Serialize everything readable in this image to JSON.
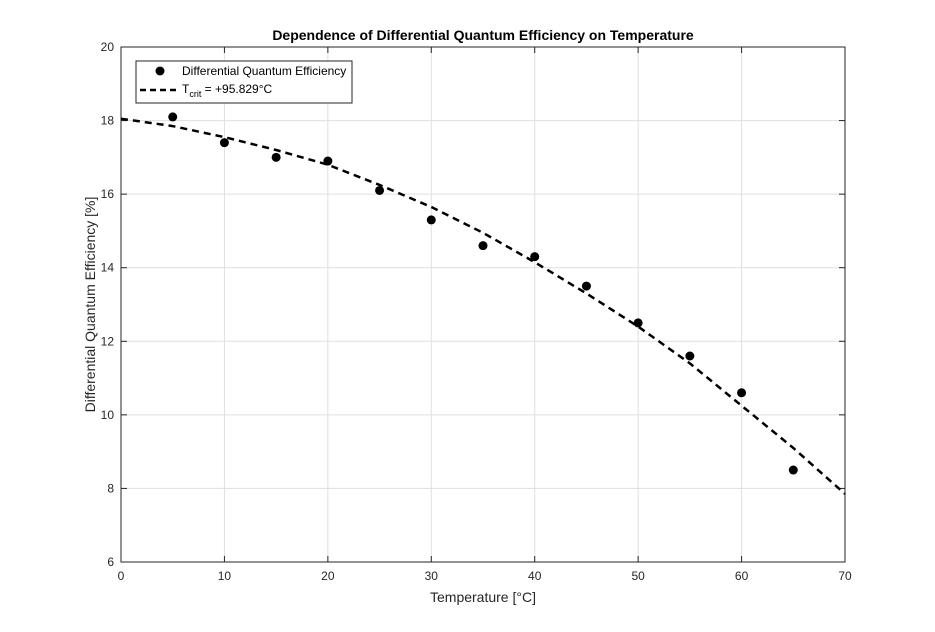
{
  "chart_data": {
    "type": "scatter",
    "title": "Dependence of Differential Quantum Efficiency on Temperature",
    "xlabel": "Temperature [°C]",
    "ylabel": "Differential Quantum Efficiency [%]",
    "xlim": [
      0,
      70
    ],
    "ylim": [
      6,
      20
    ],
    "xticks": [
      0,
      10,
      20,
      30,
      40,
      50,
      60,
      70
    ],
    "yticks": [
      6,
      8,
      10,
      12,
      14,
      16,
      18,
      20
    ],
    "grid": true,
    "legend_position": "top-left",
    "series": [
      {
        "name": "Differential Quantum Efficiency",
        "style": "markers",
        "color": "#000000",
        "x": [
          5,
          10,
          15,
          20,
          25,
          30,
          35,
          40,
          45,
          50,
          55,
          60,
          65
        ],
        "y": [
          18.1,
          17.4,
          17.0,
          16.9,
          16.1,
          15.3,
          14.6,
          14.3,
          13.5,
          12.5,
          11.6,
          10.6,
          8.5
        ]
      },
      {
        "name": "T",
        "name_sub": "crit",
        "name_suffix": " = +95.829°C",
        "style": "dashed-line",
        "color": "#000000",
        "x": [
          0,
          5,
          10,
          15,
          20,
          25,
          30,
          35,
          40,
          45,
          50,
          55,
          60,
          65,
          70
        ],
        "y": [
          18.05,
          17.85,
          17.55,
          17.2,
          16.8,
          16.25,
          15.65,
          14.95,
          14.15,
          13.3,
          12.4,
          11.4,
          10.25,
          9.1,
          7.85
        ]
      }
    ]
  }
}
